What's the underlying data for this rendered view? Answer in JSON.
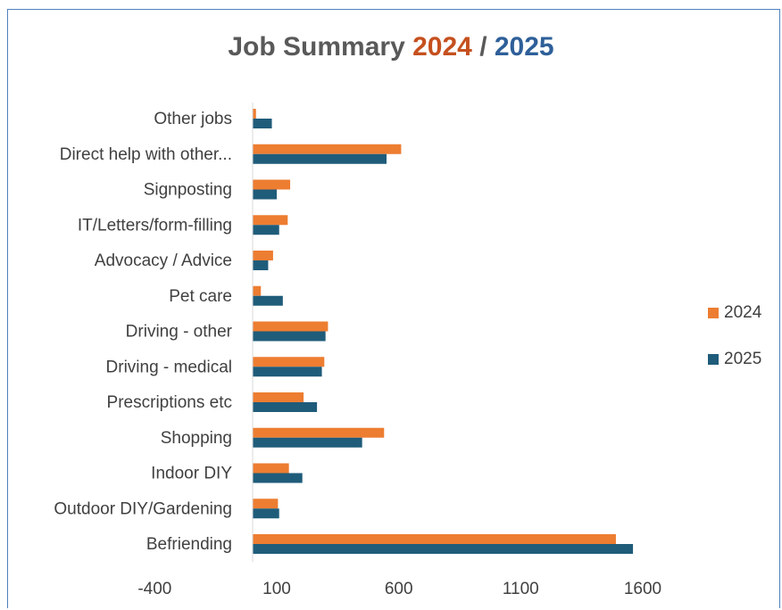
{
  "title": {
    "prefix": "Job Summary ",
    "year_a": "2024",
    "separator": " / ",
    "year_b": "2025"
  },
  "colors": {
    "series_2024": "#ed7d31",
    "series_2025": "#1f5c7a",
    "title_2024": "#c5501e",
    "title_2025": "#2e5f99",
    "frame": "#4f81bd",
    "axis": "#d9d9d9"
  },
  "chart_data": {
    "type": "bar",
    "orientation": "horizontal",
    "categories": [
      "Other jobs",
      "Direct help with other...",
      "Signposting",
      "IT/Letters/form-filling",
      "Advocacy / Advice",
      "Pet care",
      "Driving - other",
      "Driving - medical",
      "Prescriptions etc",
      "Shopping",
      "Indoor DIY",
      "Outdoor DIY/Gardening",
      "Befriending"
    ],
    "series": [
      {
        "name": "2024",
        "values": [
          15,
          610,
          155,
          145,
          85,
          35,
          310,
          295,
          210,
          540,
          150,
          105,
          1490
        ]
      },
      {
        "name": "2025",
        "values": [
          80,
          550,
          100,
          110,
          65,
          125,
          300,
          285,
          265,
          450,
          205,
          110,
          1560
        ]
      }
    ],
    "xlim": [
      -400,
      1800
    ],
    "xticks": [
      "-400",
      "100",
      "600",
      "1100",
      "1600"
    ],
    "xtick_values": [
      -400,
      100,
      600,
      1100,
      1600
    ],
    "legend_position": "right",
    "grid": false
  }
}
